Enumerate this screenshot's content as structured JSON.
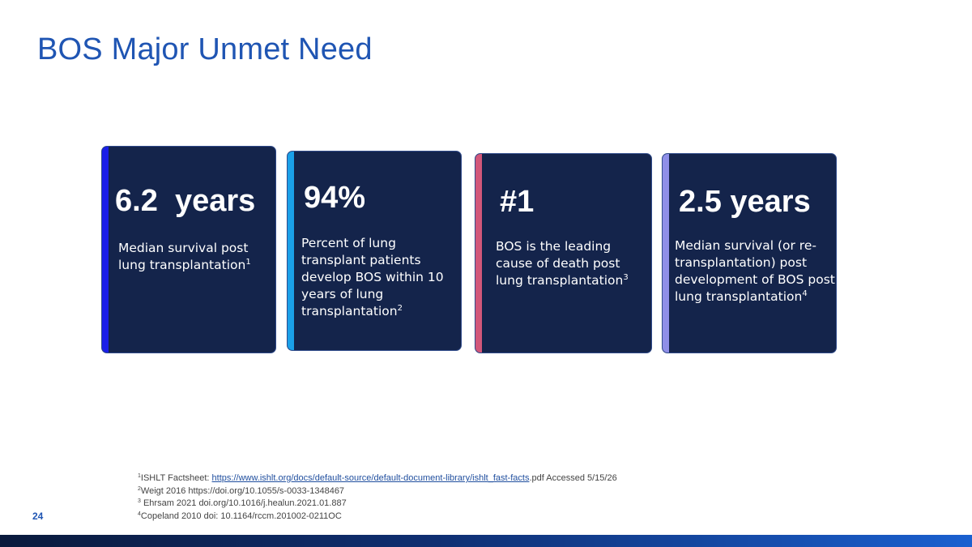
{
  "slide": {
    "title": "BOS Major Unmet Need",
    "page_number": "24"
  },
  "cards": [
    {
      "stat": "6.2  years",
      "description": "Median survival post lung transplantation",
      "ref": "1",
      "accent_color": "#1a1ee8"
    },
    {
      "stat": "94%",
      "description": "Percent of lung transplant patients develop BOS within 10 years of lung transplantation",
      "ref": "2",
      "accent_color": "#1aa0e8"
    },
    {
      "stat": "#1",
      "description": "BOS is the leading cause of death post lung transplantation",
      "ref": "3",
      "accent_color": "#d2577a"
    },
    {
      "stat": "2.5 years",
      "description": "Median survival (or re-transplantation) post development of BOS post lung transplantation",
      "ref": "4",
      "accent_color": "#8f8fe8"
    }
  ],
  "footnotes": [
    {
      "ref": "1",
      "text_before": "ISHLT Factsheet: ",
      "link": "https://www.ishlt.org/docs/default-source/default-document-library/ishlt_fast-facts",
      "text_after": ".pdf Accessed 5/15/26"
    },
    {
      "ref": "2",
      "text_before": "Weigt 2016 https://doi.org/10.1055/s-0033-1348467"
    },
    {
      "ref": "3",
      "text_before": " Ehrsam 2021 doi.org/10.1016/j.healun.2021.01.887"
    },
    {
      "ref": "4",
      "text_before": "Copeland 2010 doi: 10.1164/rccm.201002-0211OC"
    }
  ],
  "colors": {
    "title": "#1f55b3",
    "card_background": "#14244b"
  }
}
